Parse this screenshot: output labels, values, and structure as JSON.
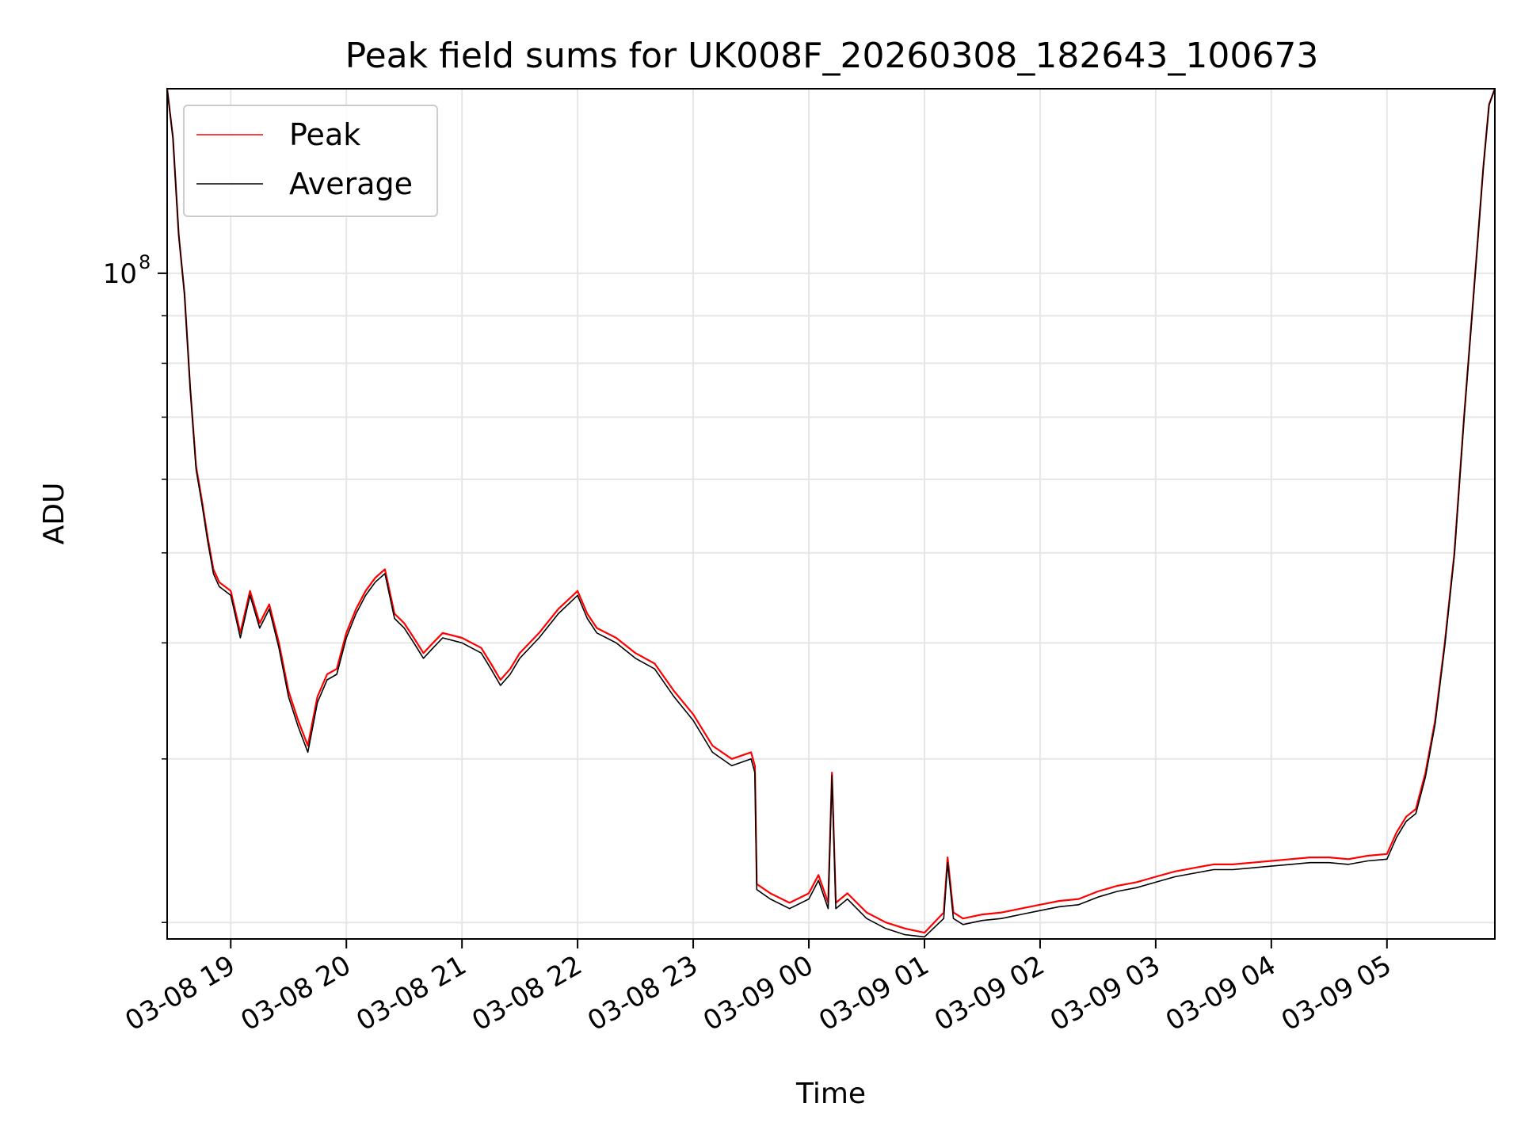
{
  "chart_data": {
    "type": "line",
    "title": "Peak field sums for UK008F_20260308_182643_100673",
    "xlabel": "Time",
    "ylabel": "ADU",
    "yscale": "log",
    "xlim": [
      "2026-03-08 18:27",
      "2026-03-09 05:56"
    ],
    "ylim": [
      19200000,
      158000000
    ],
    "x_tick_labels": [
      "03-08 19",
      "03-08 20",
      "03-08 21",
      "03-08 22",
      "03-08 23",
      "03-09 00",
      "03-09 01",
      "03-09 02",
      "03-09 03",
      "03-09 04",
      "03-09 05"
    ],
    "y_major_tick_label": {
      "base": "10",
      "exponent": "8",
      "value": 100000000
    },
    "y_minor_ticks": [
      20000000,
      30000000,
      40000000,
      50000000,
      60000000,
      70000000,
      80000000,
      90000000,
      200000000
    ],
    "grid": true,
    "legend": {
      "position": "top-left"
    },
    "series": [
      {
        "name": "Peak",
        "color": "#ff0000",
        "points": [
          [
            "2026-03-08 18:27",
            158000000
          ],
          [
            "2026-03-08 18:30",
            140000000
          ],
          [
            "2026-03-08 18:33",
            110000000
          ],
          [
            "2026-03-08 18:36",
            95000000
          ],
          [
            "2026-03-08 18:39",
            75000000
          ],
          [
            "2026-03-08 18:42",
            62000000
          ],
          [
            "2026-03-08 18:45",
            57000000
          ],
          [
            "2026-03-08 18:48",
            52000000
          ],
          [
            "2026-03-08 18:51",
            48000000
          ],
          [
            "2026-03-08 18:54",
            46500000
          ],
          [
            "2026-03-08 18:57",
            46000000
          ],
          [
            "2026-03-08 19:00",
            45500000
          ],
          [
            "2026-03-08 19:05",
            41000000
          ],
          [
            "2026-03-08 19:10",
            45500000
          ],
          [
            "2026-03-08 19:15",
            42000000
          ],
          [
            "2026-03-08 19:20",
            44000000
          ],
          [
            "2026-03-08 19:25",
            40000000
          ],
          [
            "2026-03-08 19:30",
            35500000
          ],
          [
            "2026-03-08 19:35",
            33000000
          ],
          [
            "2026-03-08 19:40",
            31000000
          ],
          [
            "2026-03-08 19:45",
            35000000
          ],
          [
            "2026-03-08 19:50",
            37000000
          ],
          [
            "2026-03-08 19:55",
            37500000
          ],
          [
            "2026-03-08 20:00",
            41000000
          ],
          [
            "2026-03-08 20:05",
            43500000
          ],
          [
            "2026-03-08 20:10",
            45500000
          ],
          [
            "2026-03-08 20:15",
            47000000
          ],
          [
            "2026-03-08 20:20",
            48000000
          ],
          [
            "2026-03-08 20:25",
            43000000
          ],
          [
            "2026-03-08 20:30",
            42000000
          ],
          [
            "2026-03-08 20:35",
            40500000
          ],
          [
            "2026-03-08 20:40",
            39000000
          ],
          [
            "2026-03-08 20:45",
            40000000
          ],
          [
            "2026-03-08 20:50",
            41000000
          ],
          [
            "2026-03-08 21:00",
            40500000
          ],
          [
            "2026-03-08 21:10",
            39500000
          ],
          [
            "2026-03-08 21:15",
            38000000
          ],
          [
            "2026-03-08 21:20",
            36500000
          ],
          [
            "2026-03-08 21:25",
            37500000
          ],
          [
            "2026-03-08 21:30",
            39000000
          ],
          [
            "2026-03-08 21:40",
            41000000
          ],
          [
            "2026-03-08 21:50",
            43500000
          ],
          [
            "2026-03-08 22:00",
            45500000
          ],
          [
            "2026-03-08 22:05",
            43000000
          ],
          [
            "2026-03-08 22:10",
            41500000
          ],
          [
            "2026-03-08 22:20",
            40500000
          ],
          [
            "2026-03-08 22:30",
            39000000
          ],
          [
            "2026-03-08 22:40",
            38000000
          ],
          [
            "2026-03-08 22:50",
            35500000
          ],
          [
            "2026-03-08 23:00",
            33500000
          ],
          [
            "2026-03-08 23:10",
            31000000
          ],
          [
            "2026-03-08 23:20",
            30000000
          ],
          [
            "2026-03-08 23:30",
            30500000
          ],
          [
            "2026-03-08 23:32",
            29500000
          ],
          [
            "2026-03-08 23:33",
            22000000
          ],
          [
            "2026-03-08 23:40",
            21500000
          ],
          [
            "2026-03-08 23:50",
            21000000
          ],
          [
            "2026-03-09 00:00",
            21500000
          ],
          [
            "2026-03-09 00:05",
            22500000
          ],
          [
            "2026-03-09 00:10",
            21000000
          ],
          [
            "2026-03-09 00:12",
            29000000
          ],
          [
            "2026-03-09 00:14",
            21000000
          ],
          [
            "2026-03-09 00:20",
            21500000
          ],
          [
            "2026-03-09 00:30",
            20500000
          ],
          [
            "2026-03-09 00:40",
            20000000
          ],
          [
            "2026-03-09 00:50",
            19700000
          ],
          [
            "2026-03-09 01:00",
            19500000
          ],
          [
            "2026-03-09 01:10",
            20500000
          ],
          [
            "2026-03-09 01:12",
            23500000
          ],
          [
            "2026-03-09 01:15",
            20500000
          ],
          [
            "2026-03-09 01:20",
            20200000
          ],
          [
            "2026-03-09 01:30",
            20400000
          ],
          [
            "2026-03-09 01:40",
            20500000
          ],
          [
            "2026-03-09 01:50",
            20700000
          ],
          [
            "2026-03-09 02:00",
            20900000
          ],
          [
            "2026-03-09 02:10",
            21100000
          ],
          [
            "2026-03-09 02:20",
            21200000
          ],
          [
            "2026-03-09 02:30",
            21600000
          ],
          [
            "2026-03-09 02:40",
            21900000
          ],
          [
            "2026-03-09 02:50",
            22100000
          ],
          [
            "2026-03-09 03:00",
            22400000
          ],
          [
            "2026-03-09 03:10",
            22700000
          ],
          [
            "2026-03-09 03:20",
            22900000
          ],
          [
            "2026-03-09 03:30",
            23100000
          ],
          [
            "2026-03-09 03:40",
            23100000
          ],
          [
            "2026-03-09 03:50",
            23200000
          ],
          [
            "2026-03-09 04:00",
            23300000
          ],
          [
            "2026-03-09 04:10",
            23400000
          ],
          [
            "2026-03-09 04:20",
            23500000
          ],
          [
            "2026-03-09 04:30",
            23500000
          ],
          [
            "2026-03-09 04:40",
            23400000
          ],
          [
            "2026-03-09 04:50",
            23600000
          ],
          [
            "2026-03-09 05:00",
            23700000
          ],
          [
            "2026-03-09 05:05",
            25000000
          ],
          [
            "2026-03-09 05:10",
            26000000
          ],
          [
            "2026-03-09 05:15",
            26500000
          ],
          [
            "2026-03-09 05:20",
            29000000
          ],
          [
            "2026-03-09 05:25",
            33000000
          ],
          [
            "2026-03-09 05:30",
            40000000
          ],
          [
            "2026-03-09 05:35",
            50000000
          ],
          [
            "2026-03-09 05:40",
            70000000
          ],
          [
            "2026-03-09 05:45",
            95000000
          ],
          [
            "2026-03-09 05:50",
            130000000
          ],
          [
            "2026-03-09 05:53",
            152000000
          ],
          [
            "2026-03-09 05:56",
            158000000
          ]
        ]
      },
      {
        "name": "Average",
        "color": "#000000",
        "points": [
          [
            "2026-03-08 18:27",
            158000000
          ],
          [
            "2026-03-08 18:30",
            140000000
          ],
          [
            "2026-03-08 18:33",
            110000000
          ],
          [
            "2026-03-08 18:36",
            95000000
          ],
          [
            "2026-03-08 18:39",
            75000000
          ],
          [
            "2026-03-08 18:42",
            61500000
          ],
          [
            "2026-03-08 18:45",
            56500000
          ],
          [
            "2026-03-08 18:48",
            51500000
          ],
          [
            "2026-03-08 18:51",
            47500000
          ],
          [
            "2026-03-08 18:54",
            46000000
          ],
          [
            "2026-03-08 18:57",
            45500000
          ],
          [
            "2026-03-08 19:00",
            45000000
          ],
          [
            "2026-03-08 19:05",
            40500000
          ],
          [
            "2026-03-08 19:10",
            45000000
          ],
          [
            "2026-03-08 19:15",
            41500000
          ],
          [
            "2026-03-08 19:20",
            43500000
          ],
          [
            "2026-03-08 19:25",
            39500000
          ],
          [
            "2026-03-08 19:30",
            35000000
          ],
          [
            "2026-03-08 19:35",
            32500000
          ],
          [
            "2026-03-08 19:40",
            30500000
          ],
          [
            "2026-03-08 19:45",
            34500000
          ],
          [
            "2026-03-08 19:50",
            36500000
          ],
          [
            "2026-03-08 19:55",
            37000000
          ],
          [
            "2026-03-08 20:00",
            40500000
          ],
          [
            "2026-03-08 20:05",
            43000000
          ],
          [
            "2026-03-08 20:10",
            45000000
          ],
          [
            "2026-03-08 20:15",
            46500000
          ],
          [
            "2026-03-08 20:20",
            47500000
          ],
          [
            "2026-03-08 20:25",
            42500000
          ],
          [
            "2026-03-08 20:30",
            41500000
          ],
          [
            "2026-03-08 20:35",
            40000000
          ],
          [
            "2026-03-08 20:40",
            38500000
          ],
          [
            "2026-03-08 20:45",
            39500000
          ],
          [
            "2026-03-08 20:50",
            40500000
          ],
          [
            "2026-03-08 21:00",
            40000000
          ],
          [
            "2026-03-08 21:10",
            39000000
          ],
          [
            "2026-03-08 21:15",
            37500000
          ],
          [
            "2026-03-08 21:20",
            36000000
          ],
          [
            "2026-03-08 21:25",
            37000000
          ],
          [
            "2026-03-08 21:30",
            38500000
          ],
          [
            "2026-03-08 21:40",
            40500000
          ],
          [
            "2026-03-08 21:50",
            43000000
          ],
          [
            "2026-03-08 22:00",
            45000000
          ],
          [
            "2026-03-08 22:05",
            42500000
          ],
          [
            "2026-03-08 22:10",
            41000000
          ],
          [
            "2026-03-08 22:20",
            40000000
          ],
          [
            "2026-03-08 22:30",
            38500000
          ],
          [
            "2026-03-08 22:40",
            37500000
          ],
          [
            "2026-03-08 22:50",
            35000000
          ],
          [
            "2026-03-08 23:00",
            33000000
          ],
          [
            "2026-03-08 23:10",
            30500000
          ],
          [
            "2026-03-08 23:20",
            29500000
          ],
          [
            "2026-03-08 23:30",
            30000000
          ],
          [
            "2026-03-08 23:32",
            29000000
          ],
          [
            "2026-03-08 23:33",
            21700000
          ],
          [
            "2026-03-08 23:40",
            21200000
          ],
          [
            "2026-03-08 23:50",
            20700000
          ],
          [
            "2026-03-09 00:00",
            21200000
          ],
          [
            "2026-03-09 00:05",
            22200000
          ],
          [
            "2026-03-09 00:10",
            20700000
          ],
          [
            "2026-03-09 00:12",
            28800000
          ],
          [
            "2026-03-09 00:14",
            20700000
          ],
          [
            "2026-03-09 00:20",
            21200000
          ],
          [
            "2026-03-09 00:30",
            20200000
          ],
          [
            "2026-03-09 00:40",
            19700000
          ],
          [
            "2026-03-09 00:50",
            19400000
          ],
          [
            "2026-03-09 01:00",
            19300000
          ],
          [
            "2026-03-09 01:10",
            20200000
          ],
          [
            "2026-03-09 01:12",
            23200000
          ],
          [
            "2026-03-09 01:15",
            20200000
          ],
          [
            "2026-03-09 01:20",
            19900000
          ],
          [
            "2026-03-09 01:30",
            20100000
          ],
          [
            "2026-03-09 01:40",
            20200000
          ],
          [
            "2026-03-09 01:50",
            20400000
          ],
          [
            "2026-03-09 02:00",
            20600000
          ],
          [
            "2026-03-09 02:10",
            20800000
          ],
          [
            "2026-03-09 02:20",
            20900000
          ],
          [
            "2026-03-09 02:30",
            21300000
          ],
          [
            "2026-03-09 02:40",
            21600000
          ],
          [
            "2026-03-09 02:50",
            21800000
          ],
          [
            "2026-03-09 03:00",
            22100000
          ],
          [
            "2026-03-09 03:10",
            22400000
          ],
          [
            "2026-03-09 03:20",
            22600000
          ],
          [
            "2026-03-09 03:30",
            22800000
          ],
          [
            "2026-03-09 03:40",
            22800000
          ],
          [
            "2026-03-09 03:50",
            22900000
          ],
          [
            "2026-03-09 04:00",
            23000000
          ],
          [
            "2026-03-09 04:10",
            23100000
          ],
          [
            "2026-03-09 04:20",
            23200000
          ],
          [
            "2026-03-09 04:30",
            23200000
          ],
          [
            "2026-03-09 04:40",
            23100000
          ],
          [
            "2026-03-09 04:50",
            23300000
          ],
          [
            "2026-03-09 05:00",
            23400000
          ],
          [
            "2026-03-09 05:05",
            24700000
          ],
          [
            "2026-03-09 05:10",
            25700000
          ],
          [
            "2026-03-09 05:15",
            26200000
          ],
          [
            "2026-03-09 05:20",
            28700000
          ],
          [
            "2026-03-09 05:25",
            32700000
          ],
          [
            "2026-03-09 05:30",
            39700000
          ],
          [
            "2026-03-09 05:35",
            49700000
          ],
          [
            "2026-03-09 05:40",
            69700000
          ],
          [
            "2026-03-09 05:45",
            94700000
          ],
          [
            "2026-03-09 05:50",
            129700000
          ],
          [
            "2026-03-09 05:53",
            151700000
          ],
          [
            "2026-03-09 05:56",
            158000000
          ]
        ]
      }
    ]
  }
}
